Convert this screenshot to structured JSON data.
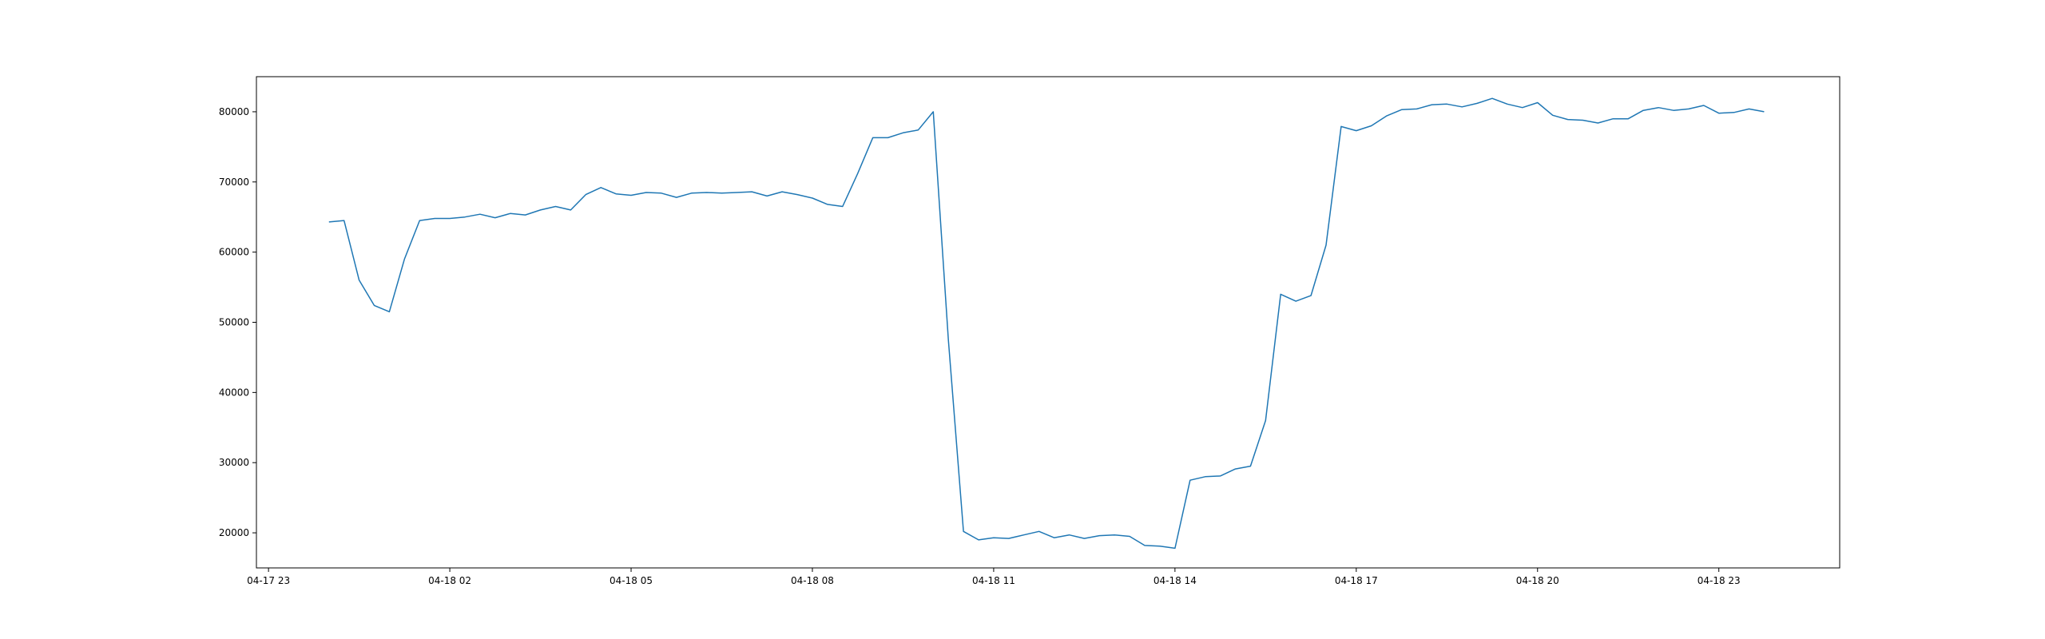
{
  "chart_data": {
    "type": "line",
    "title": "",
    "xlabel": "",
    "ylabel": "",
    "grid": false,
    "legend": "none",
    "line_color": "#1f77b4",
    "xlim": [
      "2024-04-17T22:48",
      "2024-04-19T01:00"
    ],
    "ylim": [
      15000,
      85000
    ],
    "x_ticks": [
      {
        "value": "2024-04-17T23:00",
        "label": "04-17 23"
      },
      {
        "value": "2024-04-18T02:00",
        "label": "04-18 02"
      },
      {
        "value": "2024-04-18T05:00",
        "label": "04-18 05"
      },
      {
        "value": "2024-04-18T08:00",
        "label": "04-18 08"
      },
      {
        "value": "2024-04-18T11:00",
        "label": "04-18 11"
      },
      {
        "value": "2024-04-18T14:00",
        "label": "04-18 14"
      },
      {
        "value": "2024-04-18T17:00",
        "label": "04-18 17"
      },
      {
        "value": "2024-04-18T20:00",
        "label": "04-18 20"
      },
      {
        "value": "2024-04-18T23:00",
        "label": "04-18 23"
      }
    ],
    "y_ticks": [
      {
        "value": 20000,
        "label": "20000"
      },
      {
        "value": 30000,
        "label": "30000"
      },
      {
        "value": 40000,
        "label": "40000"
      },
      {
        "value": 50000,
        "label": "50000"
      },
      {
        "value": 60000,
        "label": "60000"
      },
      {
        "value": 70000,
        "label": "70000"
      },
      {
        "value": 80000,
        "label": "80000"
      }
    ],
    "series": [
      {
        "x": [
          "2024-04-18T00:00",
          "2024-04-18T00:15",
          "2024-04-18T00:30",
          "2024-04-18T00:45",
          "2024-04-18T01:00",
          "2024-04-18T01:15",
          "2024-04-18T01:30",
          "2024-04-18T01:45",
          "2024-04-18T02:00",
          "2024-04-18T02:15",
          "2024-04-18T02:30",
          "2024-04-18T02:45",
          "2024-04-18T03:00",
          "2024-04-18T03:15",
          "2024-04-18T03:30",
          "2024-04-18T03:45",
          "2024-04-18T04:00",
          "2024-04-18T04:15",
          "2024-04-18T04:30",
          "2024-04-18T04:45",
          "2024-04-18T05:00",
          "2024-04-18T05:15",
          "2024-04-18T05:30",
          "2024-04-18T05:45",
          "2024-04-18T06:00",
          "2024-04-18T06:15",
          "2024-04-18T06:30",
          "2024-04-18T06:45",
          "2024-04-18T07:00",
          "2024-04-18T07:15",
          "2024-04-18T07:30",
          "2024-04-18T07:45",
          "2024-04-18T08:00",
          "2024-04-18T08:15",
          "2024-04-18T08:30",
          "2024-04-18T08:45",
          "2024-04-18T09:00",
          "2024-04-18T09:15",
          "2024-04-18T09:30",
          "2024-04-18T09:45",
          "2024-04-18T10:00",
          "2024-04-18T10:15",
          "2024-04-18T10:30",
          "2024-04-18T10:45",
          "2024-04-18T11:00",
          "2024-04-18T11:15",
          "2024-04-18T11:30",
          "2024-04-18T11:45",
          "2024-04-18T12:00",
          "2024-04-18T12:15",
          "2024-04-18T12:30",
          "2024-04-18T12:45",
          "2024-04-18T13:00",
          "2024-04-18T13:15",
          "2024-04-18T13:30",
          "2024-04-18T13:45",
          "2024-04-18T14:00",
          "2024-04-18T14:15",
          "2024-04-18T14:30",
          "2024-04-18T14:45",
          "2024-04-18T15:00",
          "2024-04-18T15:15",
          "2024-04-18T15:30",
          "2024-04-18T15:45",
          "2024-04-18T16:00",
          "2024-04-18T16:15",
          "2024-04-18T16:30",
          "2024-04-18T16:45",
          "2024-04-18T17:00",
          "2024-04-18T17:15",
          "2024-04-18T17:30",
          "2024-04-18T17:45",
          "2024-04-18T18:00",
          "2024-04-18T18:15",
          "2024-04-18T18:30",
          "2024-04-18T18:45",
          "2024-04-18T19:00",
          "2024-04-18T19:15",
          "2024-04-18T19:30",
          "2024-04-18T19:45",
          "2024-04-18T20:00",
          "2024-04-18T20:15",
          "2024-04-18T20:30",
          "2024-04-18T20:45",
          "2024-04-18T21:00",
          "2024-04-18T21:15",
          "2024-04-18T21:30",
          "2024-04-18T21:45",
          "2024-04-18T22:00",
          "2024-04-18T22:15",
          "2024-04-18T22:30",
          "2024-04-18T22:45",
          "2024-04-18T23:00",
          "2024-04-18T23:15",
          "2024-04-18T23:30",
          "2024-04-18T23:45"
        ],
        "values": [
          64300,
          64500,
          56000,
          52400,
          51500,
          59000,
          64500,
          64800,
          64800,
          65000,
          65400,
          64900,
          65500,
          65300,
          66000,
          66500,
          66000,
          68200,
          69200,
          68300,
          68100,
          68500,
          68400,
          67800,
          68400,
          68500,
          68400,
          68500,
          68600,
          68000,
          68600,
          68200,
          67700,
          66800,
          66500,
          71200,
          76300,
          76300,
          77000,
          77400,
          80000,
          47500,
          20200,
          19000,
          19300,
          19200,
          19700,
          20200,
          19300,
          19700,
          19200,
          19600,
          19700,
          19500,
          18200,
          18100,
          17800,
          27500,
          28000,
          28100,
          29100,
          29500,
          36000,
          54000,
          53000,
          53800,
          61000,
          77900,
          77300,
          78000,
          79400,
          80300,
          80400,
          81000,
          81100,
          80700,
          81200,
          81900,
          81100,
          80600,
          81300,
          79500,
          78900,
          78800,
          78400,
          79000,
          79000,
          80200,
          80600,
          80200,
          80400,
          80900,
          79800,
          79900,
          80400,
          80000
        ]
      }
    ]
  }
}
